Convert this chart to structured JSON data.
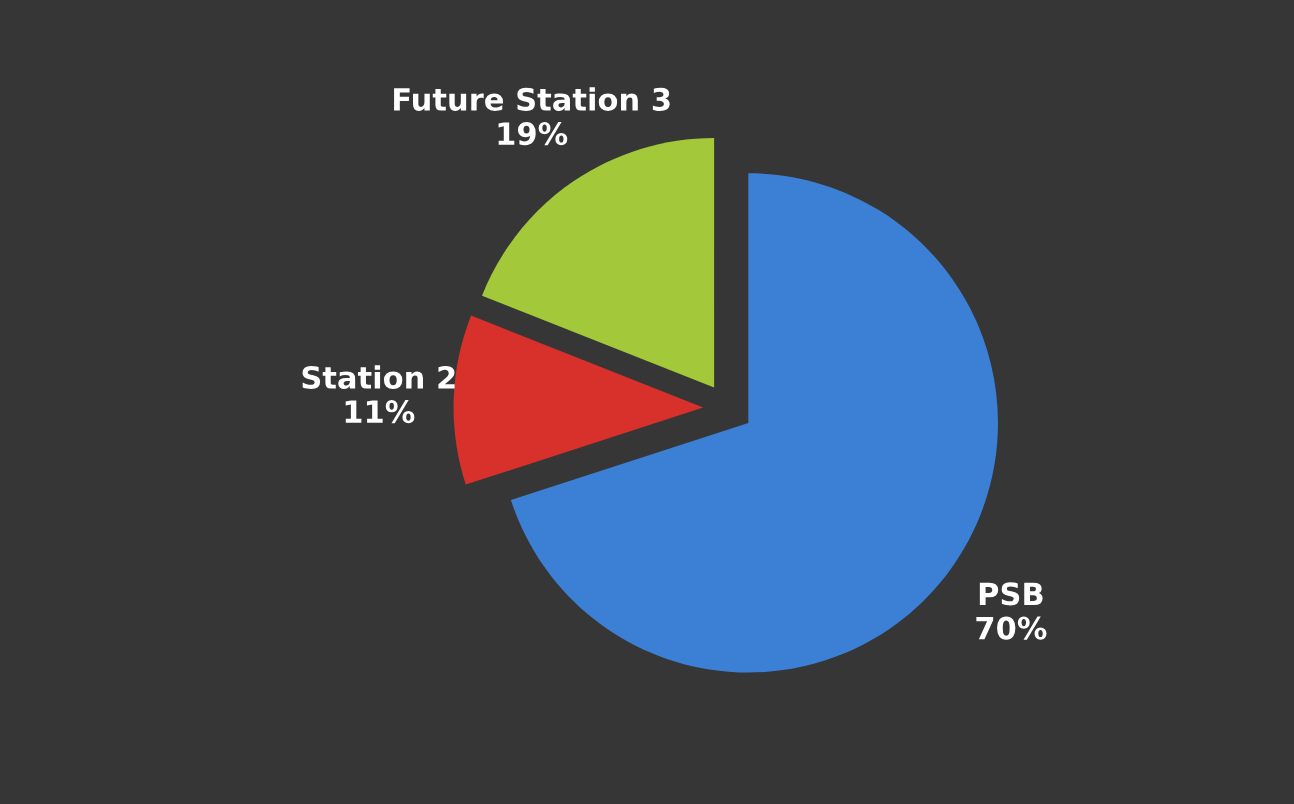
{
  "chart_data": {
    "type": "pie",
    "categories": [
      "PSB",
      "Station 2",
      "Future Station 3"
    ],
    "values": [
      70,
      11,
      19
    ],
    "value_labels": [
      "70%",
      "11%",
      "19%"
    ],
    "colors": [
      "#3c80d6",
      "#d8302a",
      "#a3c93a"
    ],
    "legend": false
  }
}
